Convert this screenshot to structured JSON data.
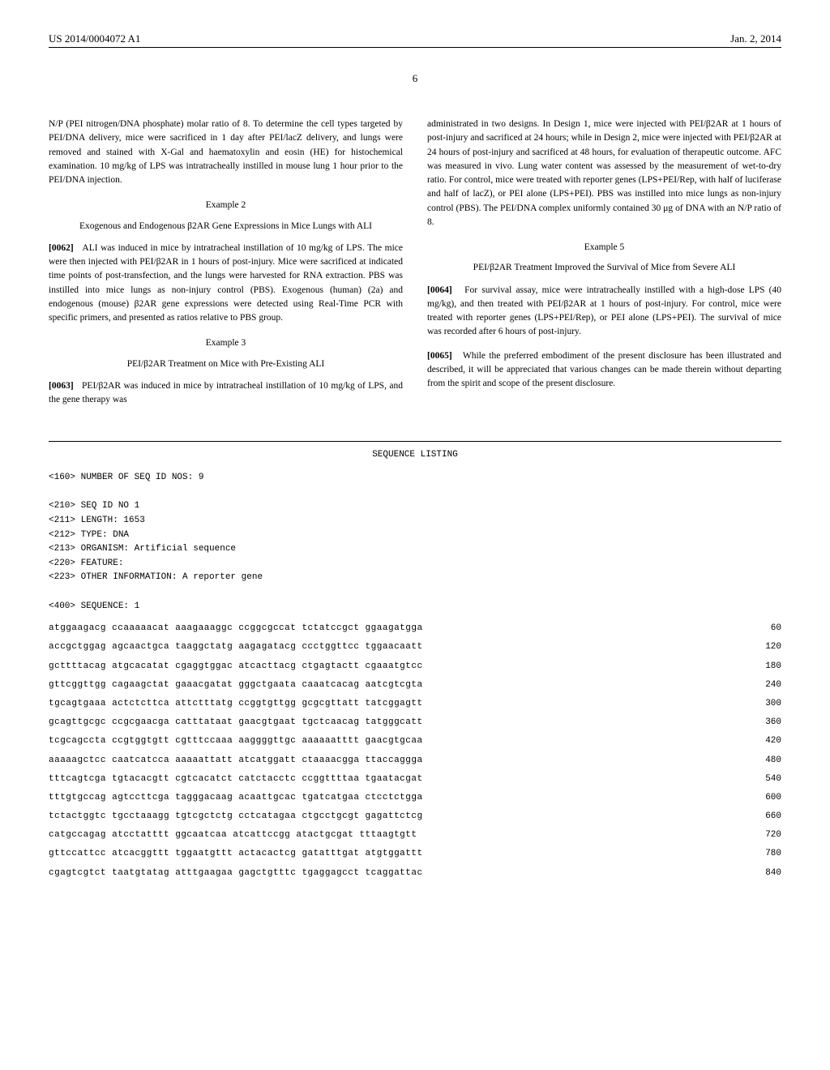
{
  "header": {
    "left": "US 2014/0004072 A1",
    "right": "Jan. 2, 2014"
  },
  "page_number": "6",
  "left_column": {
    "p1": "N/P (PEI nitrogen/DNA phosphate) molar ratio of 8. To determine the cell types targeted by PEI/DNA delivery, mice were sacrificed in 1 day after PEI/lacZ delivery, and lungs were removed and stained with X-Gal and haematoxylin and eosin (HE) for histochemical examination. 10 mg/kg of LPS was intratracheally instilled in mouse lung 1 hour prior to the PEI/DNA injection.",
    "ex2_title": "Example 2",
    "ex2_subtitle": "Exogenous and Endogenous β2AR Gene Expressions in Mice Lungs with ALI",
    "p2_num": "[0062]",
    "p2": "ALI was induced in mice by intratracheal instillation of 10 mg/kg of LPS. The mice were then injected with PEI/β2AR in 1 hours of post-injury. Mice were sacrificed at indicated time points of post-transfection, and the lungs were harvested for RNA extraction. PBS was instilled into mice lungs as non-injury control (PBS). Exogenous (human) (2a) and endogenous (mouse) β2AR gene expressions were detected using Real-Time PCR with specific primers, and presented as ratios relative to PBS group.",
    "ex3_title": "Example 3",
    "ex3_subtitle": "PEI/β2AR Treatment on Mice with Pre-Existing ALI",
    "p3_num": "[0063]",
    "p3": "PEI/β2AR was induced in mice by intratracheal instillation of 10 mg/kg of LPS, and the gene therapy was"
  },
  "right_column": {
    "p1": "administrated in two designs. In Design 1, mice were injected with PEI/β2AR at 1 hours of post-injury and sacrificed at 24 hours; while in Design 2, mice were injected with PEI/β2AR at 24 hours of post-injury and sacrificed at 48 hours, for evaluation of therapeutic outcome. AFC was measured in vivo. Lung water content was assessed by the measurement of wet-to-dry ratio. For control, mice were treated with reporter genes (LPS+PEI/Rep, with half of luciferase and half of lacZ), or PEI alone (LPS+PEI). PBS was instilled into mice lungs as non-injury control (PBS). The PEI/DNA complex uniformly contained 30 μg of DNA with an N/P ratio of 8.",
    "ex5_title": "Example 5",
    "ex5_subtitle": "PEI/β2AR Treatment Improved the Survival of Mice from Severe ALI",
    "p2_num": "[0064]",
    "p2": "For survival assay, mice were intratracheally instilled with a high-dose LPS (40 mg/kg), and then treated with PEI/β2AR at 1 hours of post-injury. For control, mice were treated with reporter genes (LPS+PEI/Rep), or PEI alone (LPS+PEI). The survival of mice was recorded after 6 hours of post-injury.",
    "p3_num": "[0065]",
    "p3": "While the preferred embodiment of the present disclosure has been illustrated and described, it will be appreciated that various changes can be made therein without departing from the spirit and scope of the present disclosure."
  },
  "sequence": {
    "title": "SEQUENCE LISTING",
    "meta": "<160> NUMBER OF SEQ ID NOS: 9\n\n<210> SEQ ID NO 1\n<211> LENGTH: 1653\n<212> TYPE: DNA\n<213> ORGANISM: Artificial sequence\n<220> FEATURE:\n<223> OTHER INFORMATION: A reporter gene\n\n<400> SEQUENCE: 1",
    "rows": [
      {
        "seq": "atggaagacg ccaaaaacat aaagaaaggc ccggcgccat tctatccgct ggaagatgga",
        "num": "60"
      },
      {
        "seq": "accgctggag agcaactgca taaggctatg aagagatacg ccctggttcc tggaacaatt",
        "num": "120"
      },
      {
        "seq": "gcttttacag atgcacatat cgaggtggac atcacttacg ctgagtactt cgaaatgtcc",
        "num": "180"
      },
      {
        "seq": "gttcggttgg cagaagctat gaaacgatat gggctgaata caaatcacag aatcgtcgta",
        "num": "240"
      },
      {
        "seq": "tgcagtgaaa actctcttca attctttatg ccggtgttgg gcgcgttatt tatcggagtt",
        "num": "300"
      },
      {
        "seq": "gcagttgcgc ccgcgaacga catttataat gaacgtgaat tgctcaacag tatgggcatt",
        "num": "360"
      },
      {
        "seq": "tcgcagccta ccgtggtgtt cgtttccaaa aaggggttgc aaaaaatttt gaacgtgcaa",
        "num": "420"
      },
      {
        "seq": "aaaaagctcc caatcatcca aaaaattatt atcatggatt ctaaaacgga ttaccaggga",
        "num": "480"
      },
      {
        "seq": "tttcagtcga tgtacacgtt cgtcacatct catctacctc ccggttttaa tgaatacgat",
        "num": "540"
      },
      {
        "seq": "tttgtgccag agtccttcga tagggacaag acaattgcac tgatcatgaa ctcctctgga",
        "num": "600"
      },
      {
        "seq": "tctactggtc tgcctaaagg tgtcgctctg cctcatagaa ctgcctgcgt gagattctcg",
        "num": "660"
      },
      {
        "seq": "catgccagag atcctatttt ggcaatcaa atcattccgg atactgcgat tttaagtgtt",
        "num": "720"
      },
      {
        "seq": "gttccattcc atcacggttt tggaatgttt actacactcg gatatttgat atgtggattt",
        "num": "780"
      },
      {
        "seq": "cgagtcgtct taatgtatag atttgaagaa gagctgtttc tgaggagcct tcaggattac",
        "num": "840"
      }
    ]
  }
}
